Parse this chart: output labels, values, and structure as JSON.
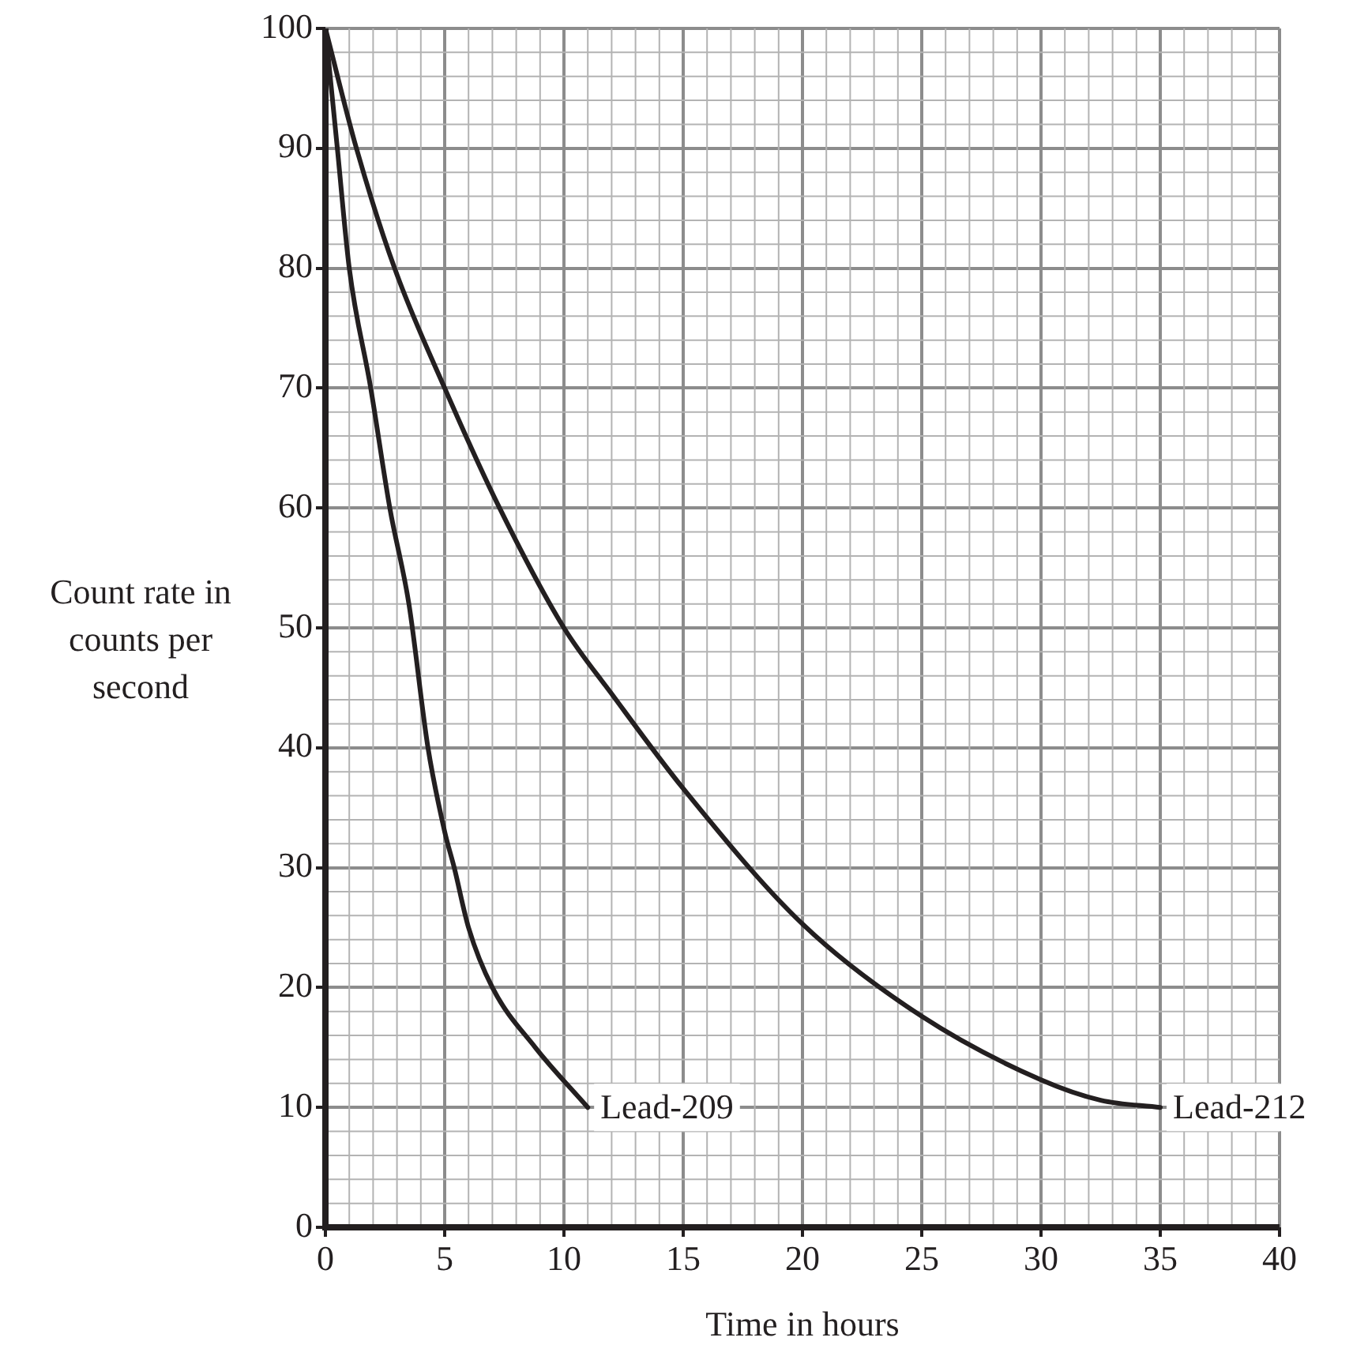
{
  "chart_data": {
    "type": "line",
    "xlabel": "Time in hours",
    "ylabel": "Count rate in counts per second",
    "xlim": [
      0,
      40
    ],
    "xticks": [
      0,
      5,
      10,
      15,
      20,
      25,
      30,
      35,
      40
    ],
    "ylim": [
      0,
      100
    ],
    "yticks": [
      0,
      10,
      20,
      30,
      40,
      50,
      60,
      70,
      80,
      90,
      100
    ],
    "grid": true,
    "legend": false,
    "marker": "none",
    "line_style": "solid",
    "series": [
      {
        "name": "Lead-209",
        "color": "#231f20",
        "x": [
          0,
          0.5,
          1,
          1.9,
          2.7,
          3.5,
          4.3,
          5,
          5.4,
          6,
          7,
          8.8,
          11
        ],
        "values": [
          100,
          90,
          80,
          70,
          60,
          52,
          40,
          33,
          30,
          25,
          20,
          15,
          10
        ]
      },
      {
        "name": "Lead-212",
        "color": "#231f20",
        "x": [
          0,
          1.3,
          2.9,
          5,
          7.3,
          10,
          12,
          15,
          20,
          25,
          30,
          32.5,
          35
        ],
        "values": [
          100,
          90,
          80,
          70,
          60,
          50,
          44.5,
          36.6,
          25.3,
          17.6,
          12.3,
          10.6,
          10
        ]
      }
    ]
  }
}
